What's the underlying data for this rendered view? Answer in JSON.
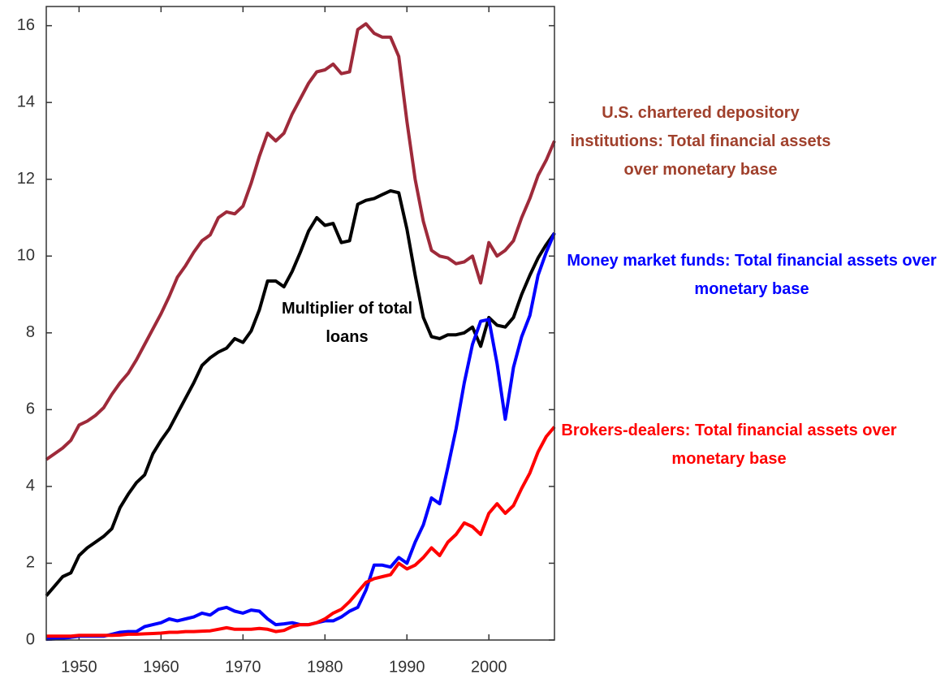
{
  "chart_data": {
    "type": "line",
    "x": [
      1946,
      1947,
      1948,
      1949,
      1950,
      1951,
      1952,
      1953,
      1954,
      1955,
      1956,
      1957,
      1958,
      1959,
      1960,
      1961,
      1962,
      1963,
      1964,
      1965,
      1966,
      1967,
      1968,
      1969,
      1970,
      1971,
      1972,
      1973,
      1974,
      1975,
      1976,
      1977,
      1978,
      1979,
      1980,
      1981,
      1982,
      1983,
      1984,
      1985,
      1986,
      1987,
      1988,
      1989,
      1990,
      1991,
      1992,
      1993,
      1994,
      1995,
      1996,
      1997,
      1998,
      1999,
      2000,
      2001,
      2002,
      2003,
      2004,
      2005,
      2006,
      2007,
      2008
    ],
    "xlim": [
      1946,
      2008
    ],
    "xticks": [
      1950,
      1960,
      1970,
      1980,
      1990,
      2000
    ],
    "ylim": [
      0,
      16.5
    ],
    "yticks": [
      0,
      2,
      4,
      6,
      8,
      10,
      12,
      14,
      16
    ],
    "series": [
      {
        "name": "U.S. chartered depository institutions: Total financial assets over monetary base",
        "color": "#9e2a3a",
        "values": [
          4.7,
          4.85,
          5.0,
          5.2,
          5.6,
          5.7,
          5.85,
          6.05,
          6.4,
          6.7,
          6.95,
          7.3,
          7.7,
          8.1,
          8.5,
          8.95,
          9.45,
          9.75,
          10.1,
          10.4,
          10.55,
          11.0,
          11.15,
          11.1,
          11.3,
          11.9,
          12.6,
          13.2,
          13.0,
          13.2,
          13.7,
          14.1,
          14.5,
          14.8,
          14.85,
          15.0,
          14.75,
          14.8,
          15.9,
          16.05,
          15.8,
          15.7,
          15.7,
          15.2,
          13.5,
          12.0,
          10.9,
          10.15,
          10.0,
          9.95,
          9.8,
          9.85,
          10.0,
          9.3,
          10.35,
          10.0,
          10.15,
          10.4,
          11.0,
          11.5,
          12.1,
          12.5,
          13.0
        ]
      },
      {
        "name": "Multiplier of total loans",
        "color": "#000000",
        "values": [
          1.15,
          1.4,
          1.65,
          1.75,
          2.2,
          2.4,
          2.55,
          2.7,
          2.9,
          3.45,
          3.8,
          4.1,
          4.3,
          4.85,
          5.2,
          5.5,
          5.9,
          6.3,
          6.7,
          7.15,
          7.35,
          7.5,
          7.6,
          7.85,
          7.75,
          8.05,
          8.6,
          9.35,
          9.35,
          9.2,
          9.6,
          10.1,
          10.65,
          11.0,
          10.8,
          10.85,
          10.35,
          10.4,
          11.35,
          11.45,
          11.5,
          11.6,
          11.7,
          11.65,
          10.7,
          9.5,
          8.4,
          7.9,
          7.85,
          7.95,
          7.95,
          8.0,
          8.15,
          7.65,
          8.4,
          8.2,
          8.15,
          8.4,
          9.0,
          9.5,
          9.95,
          10.3,
          10.6
        ]
      },
      {
        "name": "Money market funds: Total financial assets over monetary base",
        "color": "#0000ff",
        "values": [
          0.02,
          0.03,
          0.05,
          0.07,
          0.1,
          0.1,
          0.1,
          0.1,
          0.15,
          0.2,
          0.22,
          0.22,
          0.35,
          0.4,
          0.45,
          0.55,
          0.5,
          0.55,
          0.6,
          0.7,
          0.65,
          0.8,
          0.85,
          0.75,
          0.7,
          0.78,
          0.75,
          0.55,
          0.4,
          0.42,
          0.45,
          0.4,
          0.4,
          0.45,
          0.5,
          0.5,
          0.6,
          0.75,
          0.85,
          1.3,
          1.95,
          1.95,
          1.9,
          2.15,
          2.0,
          2.55,
          3.0,
          3.7,
          3.55,
          4.5,
          5.5,
          6.7,
          7.7,
          8.3,
          8.35,
          7.2,
          5.75,
          7.1,
          7.9,
          8.45,
          9.5,
          10.1,
          10.6
        ]
      },
      {
        "name": "Brokers-dealers: Total financial assets over monetary base",
        "color": "#ff0000",
        "values": [
          0.1,
          0.1,
          0.1,
          0.1,
          0.12,
          0.12,
          0.12,
          0.12,
          0.12,
          0.13,
          0.15,
          0.15,
          0.16,
          0.17,
          0.18,
          0.2,
          0.2,
          0.22,
          0.22,
          0.23,
          0.24,
          0.28,
          0.32,
          0.28,
          0.28,
          0.28,
          0.3,
          0.28,
          0.22,
          0.25,
          0.35,
          0.4,
          0.4,
          0.45,
          0.55,
          0.7,
          0.8,
          1.0,
          1.25,
          1.5,
          1.6,
          1.65,
          1.7,
          2.0,
          1.85,
          1.95,
          2.15,
          2.4,
          2.2,
          2.55,
          2.75,
          3.05,
          2.95,
          2.75,
          3.3,
          3.55,
          3.3,
          3.5,
          3.95,
          4.35,
          4.9,
          5.3,
          5.55
        ]
      }
    ]
  }
}
